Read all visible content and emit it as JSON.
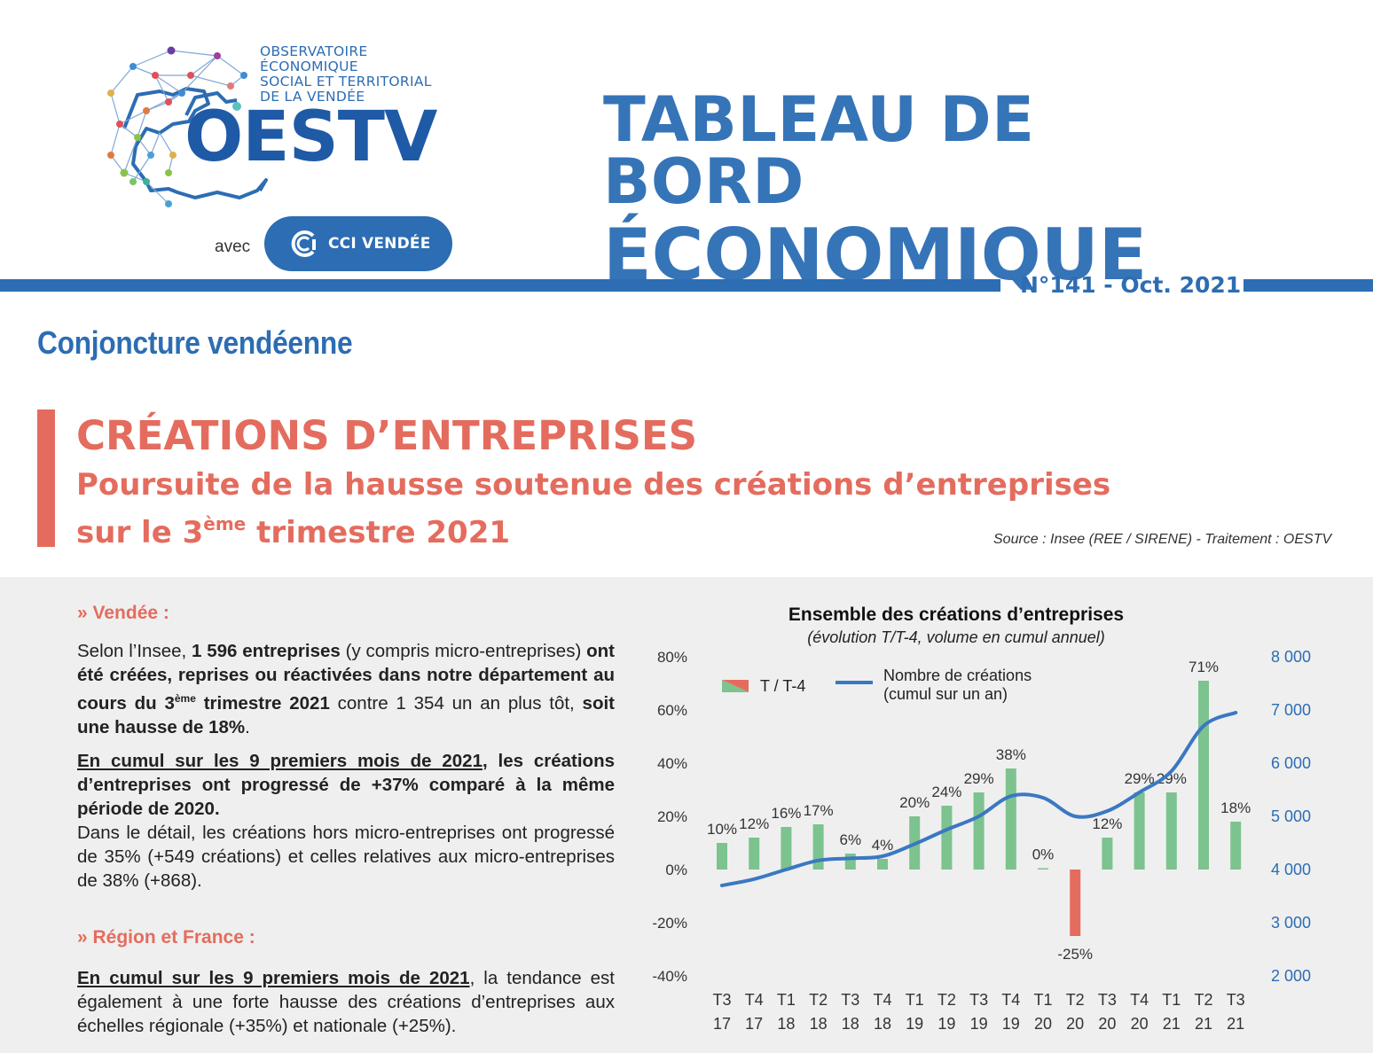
{
  "header": {
    "org_lines": [
      "OBSERVATOIRE",
      "ÉCONOMIQUE",
      "SOCIAL ET TERRITORIAL",
      "DE LA VENDÉE"
    ],
    "org_acronym": "OESTV",
    "with_label": "avec",
    "partner": "CCI VENDÉE",
    "title_line1": "TABLEAU DE BORD",
    "title_line2": "ÉCONOMIQUE",
    "issue": "N°141 - Oct. 2021"
  },
  "section_title": "Conjoncture vendéenne",
  "article": {
    "title": "CRÉATIONS D’ENTREPRISES",
    "subtitle_a": "Poursuite de la hausse soutenue des créations d’entreprises",
    "subtitle_b1": "sur le 3",
    "subtitle_sup": "ème",
    "subtitle_b2": " trimestre 2021",
    "source": "Source : Insee (REE / SIRENE) - Traitement : OESTV"
  },
  "vendee": {
    "heading": "»  Vendée :",
    "p1_a": "Selon l’Insee, ",
    "p1_b": "1 596 entreprises",
    "p1_c": " (y compris micro-entreprises) ",
    "p1_d": "ont été créées, reprises ou réactivées dans notre département au cours du 3",
    "p1_sup": "ème",
    "p1_e": " trimestre 2021",
    "p1_f": " contre 1 354 un an plus tôt, ",
    "p1_g": "soit une hausse de 18%",
    "p1_h": ".",
    "p2_u": "En cumul sur les 9 premiers mois de 2021",
    "p2_b": ", les créations d’entreprises ont progressé de +37% comparé à la même période de 2020.",
    "p3": "Dans le détail, les créations hors micro-entreprises ont progressé de 35% (+549 créations) et celles relatives aux micro-entreprises de 38% (+868)."
  },
  "region": {
    "heading": "»  Région et France :",
    "p1_u": "En cumul sur les 9 premiers mois de 2021",
    "p1_b": ", la tendance est également à une forte hausse des créations d’entreprises aux échelles régionale (+35%) et nationale (+25%)."
  },
  "colors": {
    "blue": "#2c6db3",
    "red": "#e46c5e",
    "green": "#7cc38f",
    "line": "#3a78c2"
  },
  "chart_data": {
    "type": "bar",
    "title": "Ensemble des créations d’entreprises",
    "subtitle": "(évolution T/T-4, volume en cumul annuel)",
    "categories": [
      "T3 17",
      "T4 17",
      "T1 18",
      "T2 18",
      "T3 18",
      "T4 18",
      "T1 19",
      "T2 19",
      "T3 19",
      "T4 19",
      "T1 20",
      "T2 20",
      "T3 20",
      "T4 20",
      "T1 21",
      "T2 21",
      "T3 21"
    ],
    "cat_top": [
      "T3",
      "T4",
      "T1",
      "T2",
      "T3",
      "T4",
      "T1",
      "T2",
      "T3",
      "T4",
      "T1",
      "T2",
      "T3",
      "T4",
      "T1",
      "T2",
      "T3"
    ],
    "cat_bottom": [
      "17",
      "17",
      "18",
      "18",
      "18",
      "18",
      "19",
      "19",
      "19",
      "19",
      "20",
      "20",
      "20",
      "20",
      "21",
      "21",
      "21"
    ],
    "series": [
      {
        "name": "T / T-4",
        "axis": "left",
        "values": [
          10,
          12,
          16,
          17,
          6,
          4,
          20,
          24,
          29,
          38,
          0.5,
          -25,
          12,
          29,
          29,
          71,
          18
        ],
        "labels": [
          "10%",
          "12%",
          "16%",
          "17%",
          "6%",
          "4%",
          "20%",
          "24%",
          "29%",
          "38%",
          "0%",
          "-25%",
          "12%",
          "29%",
          "29%",
          "71%",
          "18%"
        ]
      },
      {
        "name": "Nombre de créations (cumul sur un an)",
        "name_line1": "Nombre de créations",
        "name_line2": "(cumul sur un an)",
        "axis": "right",
        "type": "line",
        "values": [
          3700,
          3820,
          4000,
          4170,
          4210,
          4250,
          4480,
          4750,
          5000,
          5380,
          5350,
          5000,
          5100,
          5450,
          5850,
          6700,
          6950
        ]
      }
    ],
    "left_axis": {
      "ylim": [
        -40,
        80
      ],
      "ticks": [
        "80%",
        "60%",
        "40%",
        "20%",
        "0%",
        "-20%",
        "-40%"
      ]
    },
    "right_axis": {
      "ylim": [
        2000,
        8000
      ],
      "ticks": [
        "8 000",
        "7 000",
        "6 000",
        "5 000",
        "4 000",
        "3 000",
        "2 000"
      ]
    },
    "legend_position": "top-left"
  }
}
